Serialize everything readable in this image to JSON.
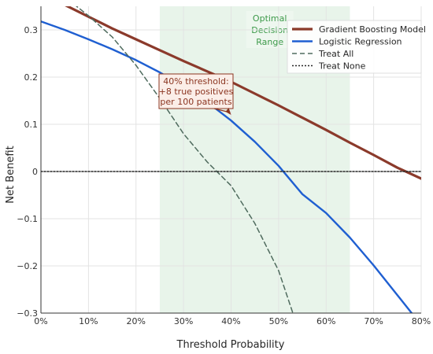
{
  "chart_data": {
    "type": "line",
    "xlabel": "Threshold Probability",
    "ylabel": "Net Benefit",
    "xlim": [
      0.0,
      0.8
    ],
    "ylim": [
      -0.3,
      0.35
    ],
    "xticks": [
      0.0,
      0.1,
      0.2,
      0.3,
      0.4,
      0.5,
      0.6,
      0.7,
      0.8
    ],
    "xtick_labels": [
      "0%",
      "10%",
      "20%",
      "30%",
      "40%",
      "50%",
      "60%",
      "70%",
      "80%"
    ],
    "yticks": [
      -0.3,
      -0.2,
      -0.1,
      0.0,
      0.1,
      0.2,
      0.3
    ],
    "ytick_labels": [
      "−0.3",
      "−0.2",
      "−0.1",
      "0",
      "0.1",
      "0.2",
      "0.3"
    ],
    "grid": true,
    "legend_position": "top-right",
    "shaded_region": {
      "x_range": [
        0.25,
        0.65
      ],
      "label_lines": [
        "Optimal",
        "Decision",
        "Range"
      ],
      "color": "#e8f4ea",
      "label_color": "#3d9a4a"
    },
    "annotation": {
      "lines": [
        "40% threshold:",
        "+8 true positives",
        "per 100 patients"
      ],
      "point": [
        0.4,
        0.12
      ],
      "color": "#8b3520",
      "background": "#fbeee8"
    },
    "series": [
      {
        "name": "Gradient Boosting Model",
        "color": "#8b3a2b",
        "style": "solid",
        "x": [
          0.0,
          0.05,
          0.1,
          0.15,
          0.2,
          0.25,
          0.3,
          0.35,
          0.4,
          0.45,
          0.5,
          0.55,
          0.6,
          0.65,
          0.7,
          0.75,
          0.8
        ],
        "y": [
          0.38,
          0.353,
          0.328,
          0.303,
          0.28,
          0.257,
          0.234,
          0.212,
          0.19,
          0.165,
          0.14,
          0.114,
          0.088,
          0.061,
          0.035,
          0.008,
          -0.015
        ]
      },
      {
        "name": "Logistic Regression",
        "color": "#1f5fd1",
        "style": "solid",
        "x": [
          0.0,
          0.05,
          0.1,
          0.15,
          0.2,
          0.25,
          0.3,
          0.35,
          0.4,
          0.45,
          0.5,
          0.55,
          0.6,
          0.65,
          0.7,
          0.75,
          0.78
        ],
        "y": [
          0.318,
          0.3,
          0.28,
          0.259,
          0.236,
          0.21,
          0.181,
          0.147,
          0.108,
          0.063,
          0.012,
          -0.048,
          -0.088,
          -0.14,
          -0.199,
          -0.262,
          -0.3
        ]
      },
      {
        "name": "Treat All",
        "color": "#4f6b5e",
        "style": "dashed",
        "x": [
          0.0,
          0.05,
          0.1,
          0.15,
          0.2,
          0.25,
          0.3,
          0.35,
          0.4,
          0.45,
          0.5,
          0.53
        ],
        "y": [
          0.4,
          0.37,
          0.33,
          0.285,
          0.225,
          0.155,
          0.08,
          0.02,
          -0.03,
          -0.11,
          -0.21,
          -0.3
        ]
      },
      {
        "name": "Treat None",
        "color": "#262626",
        "style": "dotted",
        "x": [
          0.0,
          0.8
        ],
        "y": [
          0.0,
          0.0
        ]
      }
    ]
  }
}
